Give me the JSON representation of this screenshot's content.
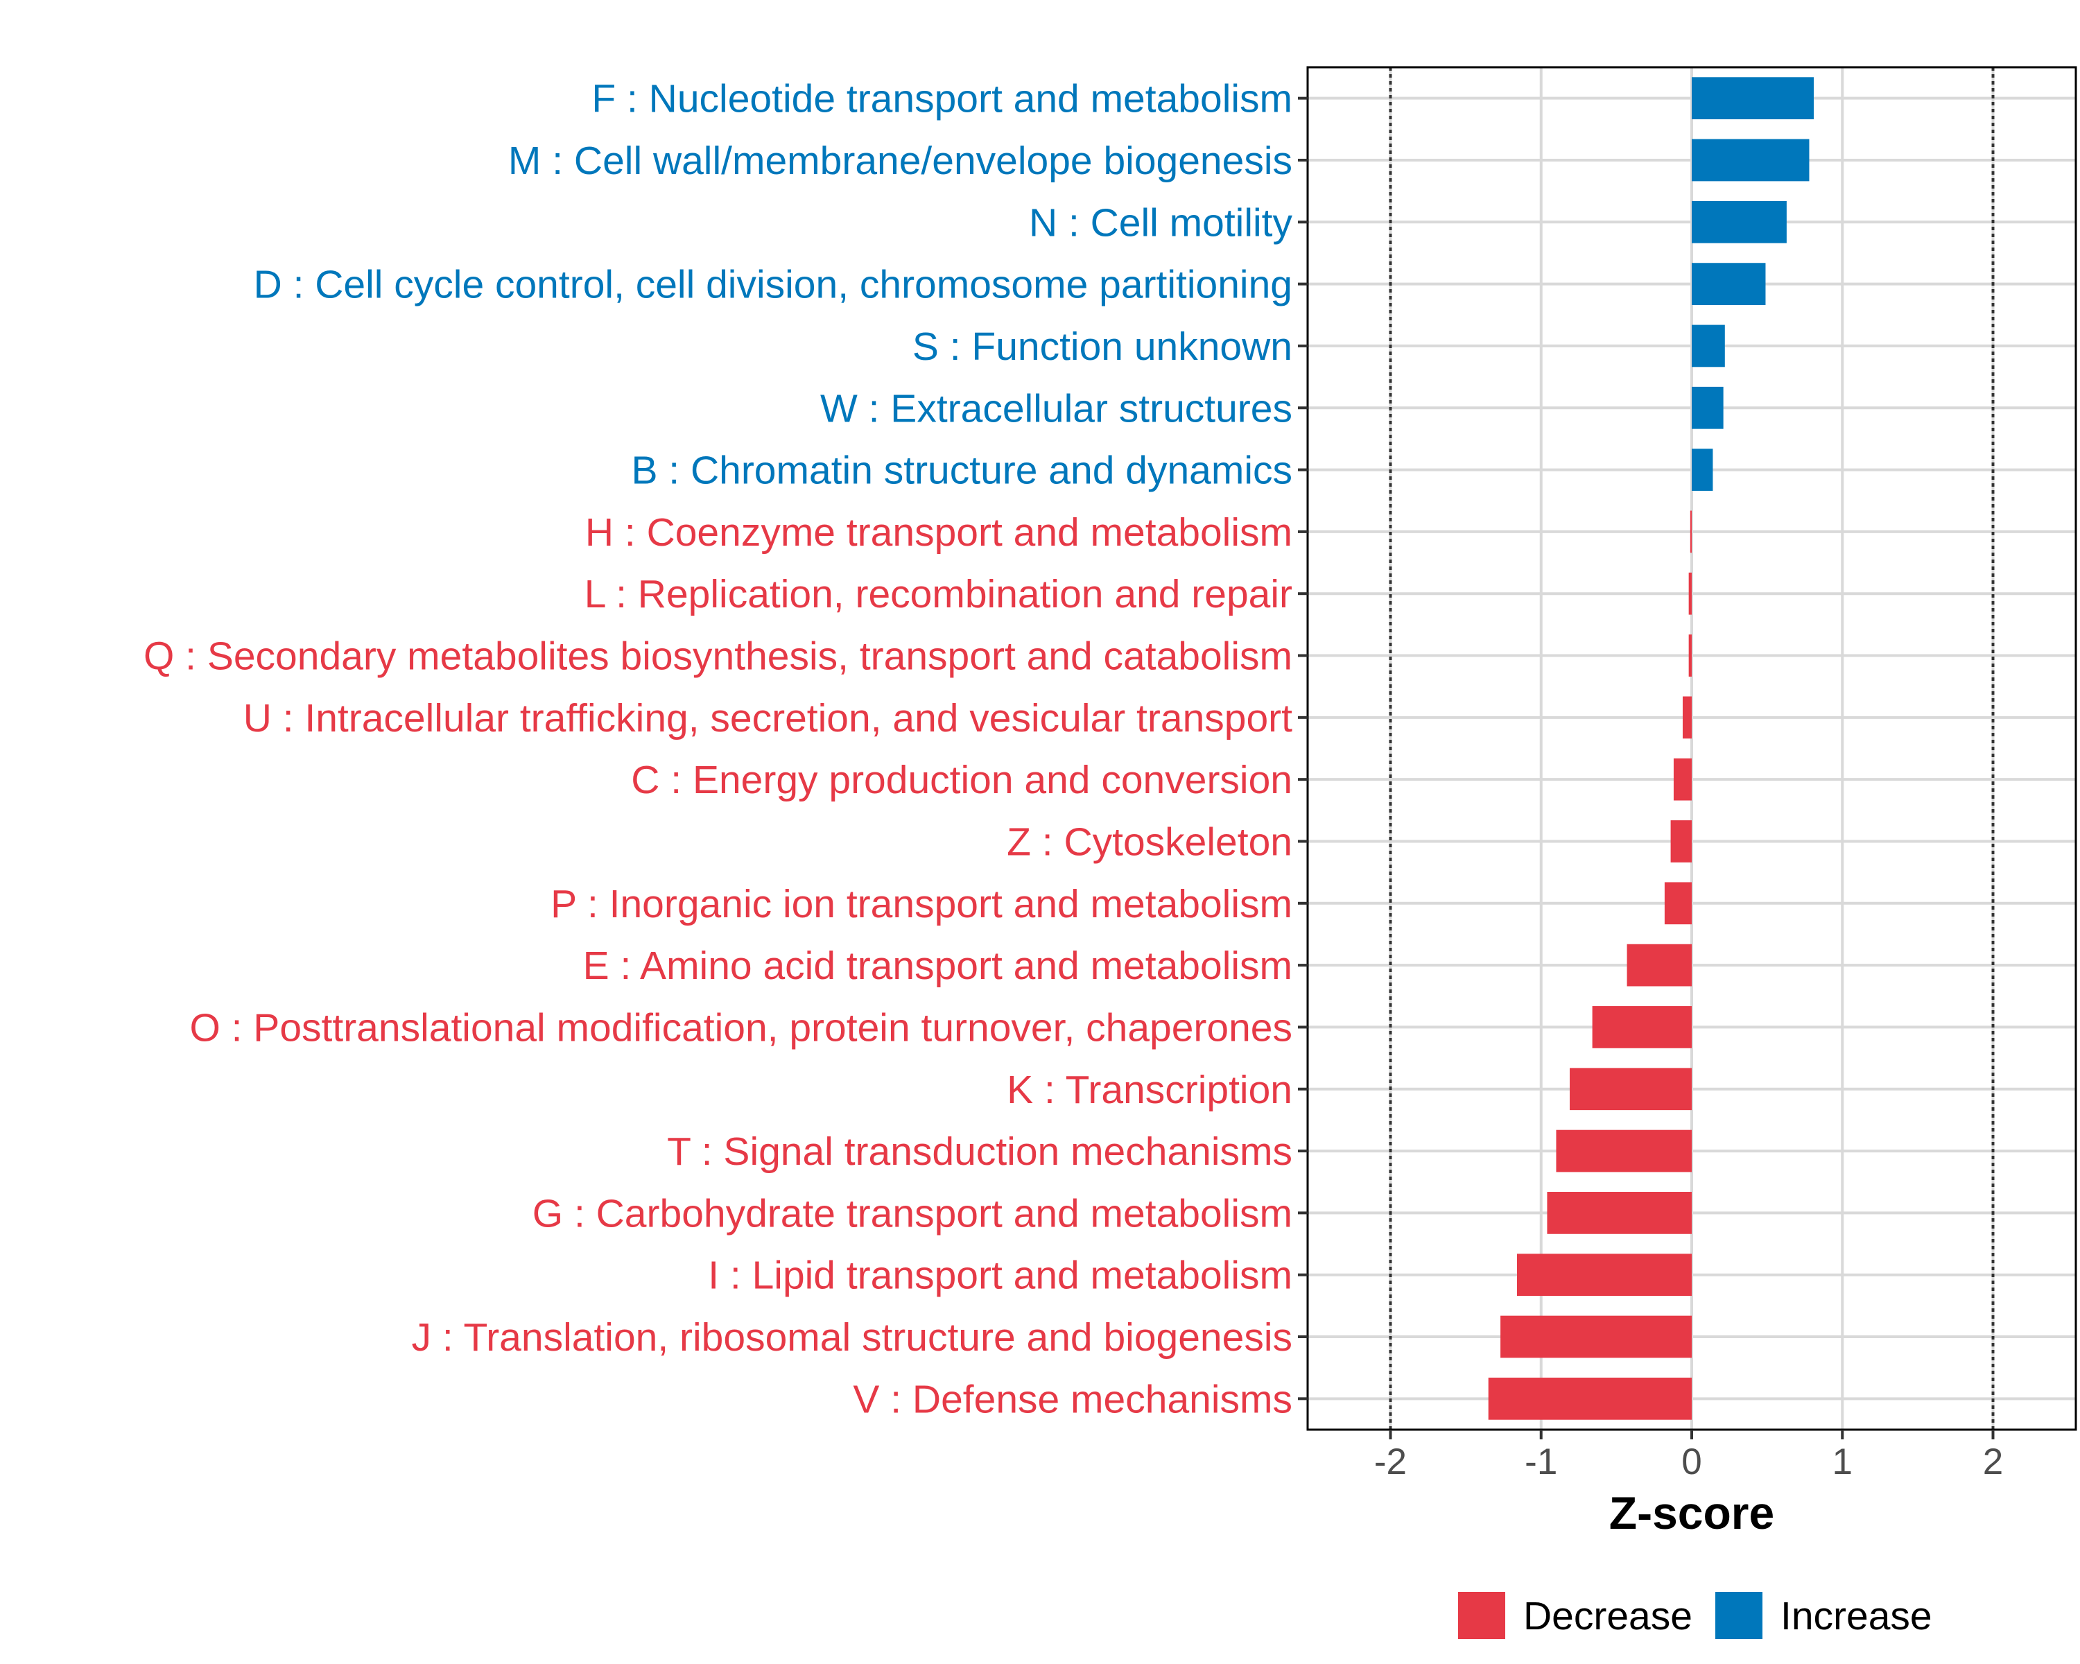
{
  "chart_data": {
    "type": "bar",
    "orientation": "horizontal",
    "title": "",
    "xlabel": "Z-score",
    "ylabel": "",
    "xlim": [
      -2.55,
      2.55
    ],
    "xticks": [
      -2,
      -1,
      0,
      1,
      2
    ],
    "xtick_labels": [
      "-2",
      "-1",
      "0",
      "1",
      "2"
    ],
    "reference_lines": [
      -2,
      2
    ],
    "grid": true,
    "legend_position": "bottom",
    "colors": {
      "Increase": "#0077bb",
      "Decrease": "#e63946"
    },
    "legend": [
      {
        "label": "Decrease",
        "color": "#e63946"
      },
      {
        "label": "Increase",
        "color": "#0077bb"
      }
    ],
    "categories": [
      "F : Nucleotide transport and metabolism",
      "M : Cell wall/membrane/envelope biogenesis",
      "N : Cell motility",
      "D : Cell cycle control, cell division, chromosome partitioning",
      "S : Function unknown",
      "W : Extracellular structures",
      "B : Chromatin structure and dynamics",
      "H : Coenzyme transport and metabolism",
      "L : Replication, recombination and repair",
      "Q : Secondary metabolites biosynthesis, transport and catabolism",
      "U : Intracellular trafficking, secretion, and vesicular transport",
      "C : Energy production and conversion",
      "Z : Cytoskeleton",
      "P : Inorganic ion transport and metabolism",
      "E : Amino acid transport and metabolism",
      "O : Posttranslational modification, protein turnover, chaperones",
      "K : Transcription",
      "T : Signal transduction mechanisms",
      "G : Carbohydrate transport and metabolism",
      "I : Lipid transport and metabolism",
      "J : Translation, ribosomal structure and biogenesis",
      "V : Defense mechanisms"
    ],
    "values": [
      0.81,
      0.78,
      0.63,
      0.49,
      0.22,
      0.21,
      0.14,
      -0.01,
      -0.02,
      -0.02,
      -0.06,
      -0.12,
      -0.14,
      -0.18,
      -0.43,
      -0.66,
      -0.81,
      -0.9,
      -0.96,
      -1.16,
      -1.27,
      -1.35
    ],
    "groups": [
      "Increase",
      "Increase",
      "Increase",
      "Increase",
      "Increase",
      "Increase",
      "Increase",
      "Decrease",
      "Decrease",
      "Decrease",
      "Decrease",
      "Decrease",
      "Decrease",
      "Decrease",
      "Decrease",
      "Decrease",
      "Decrease",
      "Decrease",
      "Decrease",
      "Decrease",
      "Decrease",
      "Decrease"
    ]
  }
}
